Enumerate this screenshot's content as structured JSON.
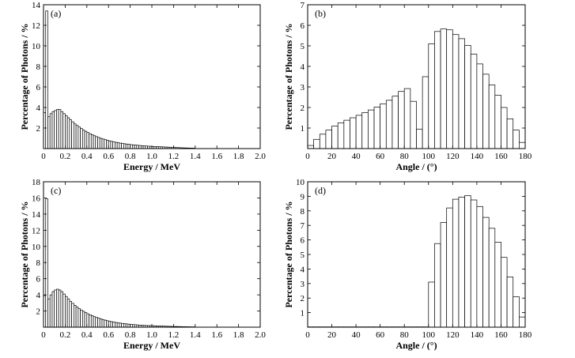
{
  "chart_data": [
    {
      "id": "a",
      "type": "bar",
      "panel_label": "(a)",
      "xlabel": "Energy / MeV",
      "ylabel": "Percentage of Photons / %",
      "xlim": [
        0,
        2.0
      ],
      "ylim": [
        0,
        14
      ],
      "xticks": [
        0,
        0.2,
        0.4,
        0.6,
        0.8,
        1.0,
        1.2,
        1.4,
        1.6,
        1.8,
        2.0
      ],
      "xtick_labels": [
        "0",
        "0.2",
        "0.4",
        "0.6",
        "0.8",
        "1.0",
        "1.2",
        "1.4",
        "1.6",
        "1.8",
        "2.0"
      ],
      "yticks": [
        2,
        4,
        6,
        8,
        10,
        12,
        14
      ],
      "ytick_labels": [
        "2",
        "4",
        "6",
        "8",
        "10",
        "12",
        "14"
      ],
      "bin_width": 0.02,
      "values": [
        3.5,
        13.4,
        3.1,
        3.4,
        3.6,
        3.7,
        3.8,
        3.8,
        3.6,
        3.4,
        3.2,
        3.0,
        2.8,
        2.6,
        2.4,
        2.25,
        2.1,
        1.95,
        1.8,
        1.68,
        1.56,
        1.45,
        1.35,
        1.25,
        1.16,
        1.08,
        1.0,
        0.93,
        0.87,
        0.81,
        0.75,
        0.7,
        0.65,
        0.61,
        0.57,
        0.53,
        0.5,
        0.47,
        0.44,
        0.41,
        0.38,
        0.36,
        0.34,
        0.32,
        0.3,
        0.28,
        0.26,
        0.25,
        0.23,
        0.22,
        0.21,
        0.2,
        0.19,
        0.18,
        0.17,
        0.16,
        0.15,
        0.14,
        0.13,
        0.12,
        0.11,
        0.1,
        0.09,
        0.08,
        0.07,
        0.06,
        0.06,
        0.05,
        0.05,
        0.04
      ]
    },
    {
      "id": "b",
      "type": "bar",
      "panel_label": "(b)",
      "xlabel": "Angle / (°)",
      "ylabel": "Percentage of Photons / %",
      "xlim": [
        0,
        180
      ],
      "ylim": [
        0,
        7
      ],
      "xticks": [
        0,
        20,
        40,
        60,
        80,
        100,
        120,
        140,
        160,
        180
      ],
      "xtick_labels": [
        "0",
        "20",
        "40",
        "60",
        "80",
        "100",
        "120",
        "140",
        "160",
        "180"
      ],
      "yticks": [
        1,
        2,
        3,
        4,
        5,
        6,
        7
      ],
      "ytick_labels": [
        "1",
        "2",
        "3",
        "4",
        "5",
        "6",
        "7"
      ],
      "bin_width": 5,
      "values": [
        0.15,
        0.45,
        0.7,
        0.9,
        1.1,
        1.25,
        1.38,
        1.5,
        1.62,
        1.75,
        1.88,
        2.02,
        2.18,
        2.35,
        2.55,
        2.78,
        2.92,
        2.3,
        0.95,
        3.5,
        5.1,
        5.7,
        5.82,
        5.78,
        5.55,
        5.35,
        5.02,
        4.6,
        4.12,
        3.62,
        3.1,
        2.6,
        2.0,
        1.45,
        0.9,
        0.3
      ]
    },
    {
      "id": "c",
      "type": "bar",
      "panel_label": "(c)",
      "xlabel": "Energy / MeV",
      "ylabel": "Percentage of Photons / %",
      "xlim": [
        0,
        2.0
      ],
      "ylim": [
        0,
        18
      ],
      "xticks": [
        0,
        0.2,
        0.4,
        0.6,
        0.8,
        1.0,
        1.2,
        1.4,
        1.6,
        1.8,
        2.0
      ],
      "xtick_labels": [
        "0",
        "0.2",
        "0.4",
        "0.6",
        "0.8",
        "1.0",
        "1.2",
        "1.4",
        "1.6",
        "1.8",
        "2.0"
      ],
      "yticks": [
        2,
        4,
        6,
        8,
        10,
        12,
        14,
        16,
        18
      ],
      "ytick_labels": [
        "2",
        "4",
        "6",
        "8",
        "10",
        "12",
        "14",
        "16",
        "18"
      ],
      "bin_width": 0.02,
      "values": [
        3.9,
        15.9,
        3.5,
        4.0,
        4.4,
        4.6,
        4.7,
        4.6,
        4.4,
        4.1,
        3.8,
        3.5,
        3.2,
        2.95,
        2.7,
        2.5,
        2.3,
        2.12,
        1.95,
        1.8,
        1.66,
        1.53,
        1.41,
        1.3,
        1.2,
        1.11,
        1.02,
        0.94,
        0.87,
        0.8,
        0.74,
        0.68,
        0.63,
        0.58,
        0.54,
        0.5,
        0.46,
        0.43,
        0.4,
        0.37,
        0.34,
        0.32,
        0.3,
        0.28,
        0.26,
        0.24,
        0.22,
        0.21,
        0.2,
        0.19,
        0.18,
        0.17,
        0.16,
        0.15,
        0.14,
        0.13,
        0.12,
        0.11,
        0.1,
        0.09,
        0.08,
        0.08,
        0.07,
        0.07,
        0.06,
        0.06,
        0.05,
        0.05,
        0.04,
        0.04
      ]
    },
    {
      "id": "d",
      "type": "bar",
      "panel_label": "(d)",
      "xlabel": "Angle / (°)",
      "ylabel": "Percentage of Photons / %",
      "xlim": [
        0,
        180
      ],
      "ylim": [
        0,
        10
      ],
      "xticks": [
        0,
        20,
        40,
        60,
        80,
        100,
        120,
        140,
        160,
        180
      ],
      "xtick_labels": [
        "0",
        "20",
        "40",
        "60",
        "80",
        "100",
        "120",
        "140",
        "160",
        "180"
      ],
      "yticks": [
        1,
        2,
        3,
        4,
        5,
        6,
        7,
        8,
        9,
        10
      ],
      "ytick_labels": [
        "1",
        "2",
        "3",
        "4",
        "5",
        "6",
        "7",
        "8",
        "9",
        "10"
      ],
      "bin_width": 5,
      "values": [
        0.02,
        0.02,
        0.02,
        0.02,
        0.02,
        0.02,
        0.02,
        0.02,
        0.02,
        0.02,
        0.02,
        0.02,
        0.02,
        0.02,
        0.02,
        0.02,
        0.02,
        0.02,
        0.02,
        0.02,
        3.1,
        5.75,
        7.2,
        8.2,
        8.8,
        8.95,
        9.05,
        8.75,
        8.3,
        7.55,
        6.8,
        5.85,
        4.8,
        3.45,
        2.1,
        0.7
      ]
    }
  ]
}
